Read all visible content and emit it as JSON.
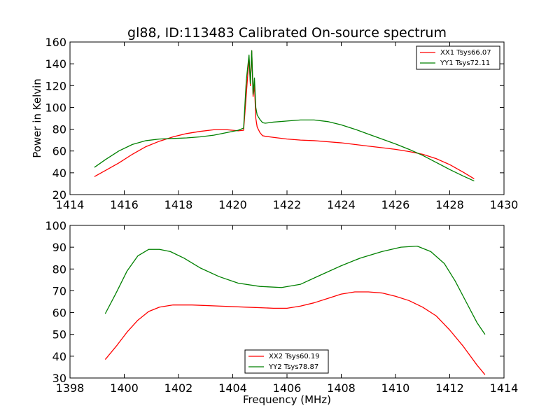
{
  "chart_data": [
    {
      "type": "line",
      "title": "gl88, ID:113483 Calibrated On-source spectrum",
      "xlabel": "",
      "ylabel": "Power in Kelvin",
      "xlim": [
        1414,
        1430
      ],
      "ylim": [
        20,
        160
      ],
      "xticks": [
        1414,
        1416,
        1418,
        1420,
        1422,
        1424,
        1426,
        1428,
        1430
      ],
      "yticks": [
        20,
        40,
        60,
        80,
        100,
        120,
        140,
        160
      ],
      "legend": "top-right",
      "grid": false,
      "series": [
        {
          "name": "XX1 Tsys66.07",
          "color": "#ff0000",
          "x": [
            1414.9,
            1415.3,
            1415.8,
            1416.3,
            1416.8,
            1417.3,
            1417.8,
            1418.3,
            1418.8,
            1419.3,
            1419.8,
            1420.2,
            1420.4,
            1420.5,
            1420.6,
            1420.65,
            1420.7,
            1420.75,
            1420.8,
            1420.85,
            1420.9,
            1421.0,
            1421.1,
            1421.2,
            1421.5,
            1422.0,
            1422.5,
            1423.0,
            1423.5,
            1424.0,
            1424.5,
            1425.0,
            1425.5,
            1426.0,
            1426.5,
            1427.0,
            1427.5,
            1428.0,
            1428.5,
            1428.9
          ],
          "y": [
            36.5,
            42,
            49,
            57,
            64,
            69,
            73,
            76,
            78,
            79.5,
            79.5,
            78.5,
            79,
            112,
            146,
            120,
            152,
            110,
            120,
            90,
            82,
            77,
            74,
            73.5,
            72.5,
            71,
            70,
            69.5,
            68.5,
            67.5,
            66,
            64.5,
            63,
            61.5,
            59.5,
            57,
            53,
            47.5,
            40.5,
            34.5
          ]
        },
        {
          "name": "YY1 Tsys72.11",
          "color": "#008000",
          "x": [
            1414.9,
            1415.3,
            1415.8,
            1416.3,
            1416.8,
            1417.3,
            1417.8,
            1418.3,
            1418.8,
            1419.3,
            1419.8,
            1420.2,
            1420.4,
            1420.5,
            1420.6,
            1420.65,
            1420.7,
            1420.75,
            1420.8,
            1420.85,
            1420.9,
            1421.0,
            1421.1,
            1421.2,
            1421.5,
            1422.0,
            1422.5,
            1423.0,
            1423.5,
            1424.0,
            1424.5,
            1425.0,
            1425.5,
            1426.0,
            1426.5,
            1427.0,
            1427.5,
            1428.0,
            1428.5,
            1428.9
          ],
          "y": [
            45,
            52,
            60,
            66,
            69.5,
            71,
            71.5,
            72,
            73,
            74.5,
            77,
            79,
            81,
            125,
            148,
            122,
            152,
            112,
            127,
            100,
            93,
            89,
            86,
            85.5,
            86.5,
            87.5,
            88.5,
            88.5,
            87,
            84,
            80,
            75.5,
            71,
            66.5,
            61.5,
            56,
            49.5,
            43,
            37,
            32.5
          ]
        }
      ]
    },
    {
      "type": "line",
      "title": "",
      "xlabel": "Frequency (MHz)",
      "ylabel": "",
      "xlim": [
        1398,
        1414
      ],
      "ylim": [
        30,
        100
      ],
      "xticks": [
        1398,
        1400,
        1402,
        1404,
        1406,
        1408,
        1410,
        1412,
        1414
      ],
      "yticks": [
        30,
        40,
        50,
        60,
        70,
        80,
        90,
        100
      ],
      "legend": "bottom-center",
      "grid": false,
      "series": [
        {
          "name": "XX2 Tsys60.19",
          "color": "#ff0000",
          "x": [
            1399.3,
            1399.7,
            1400.1,
            1400.5,
            1400.9,
            1401.3,
            1401.8,
            1402.5,
            1403.5,
            1404.5,
            1405.5,
            1406.0,
            1406.5,
            1407.0,
            1407.5,
            1408.0,
            1408.5,
            1409.0,
            1409.5,
            1410.0,
            1410.5,
            1411.0,
            1411.5,
            1412.0,
            1412.5,
            1413.0,
            1413.3
          ],
          "y": [
            38.5,
            44.5,
            51,
            56.5,
            60.5,
            62.5,
            63.5,
            63.5,
            63,
            62.5,
            62,
            62,
            63,
            64.5,
            66.5,
            68.5,
            69.5,
            69.5,
            69,
            67.5,
            65.5,
            62.5,
            58.5,
            52,
            44.5,
            36,
            31.5
          ]
        },
        {
          "name": "YY2 Tsys78.87",
          "color": "#008000",
          "x": [
            1399.3,
            1399.7,
            1400.1,
            1400.5,
            1400.9,
            1401.3,
            1401.7,
            1402.2,
            1402.8,
            1403.5,
            1404.2,
            1405.0,
            1405.8,
            1406.5,
            1407.2,
            1408.0,
            1408.7,
            1409.5,
            1410.2,
            1410.8,
            1411.3,
            1411.8,
            1412.2,
            1412.6,
            1413.0,
            1413.3
          ],
          "y": [
            59.5,
            69,
            79,
            86,
            89,
            89,
            88,
            85,
            80.5,
            76.5,
            73.5,
            72,
            71.5,
            73,
            77,
            81.5,
            85,
            88,
            90,
            90.5,
            88,
            82.5,
            74.5,
            65,
            55.5,
            50
          ]
        }
      ]
    }
  ]
}
